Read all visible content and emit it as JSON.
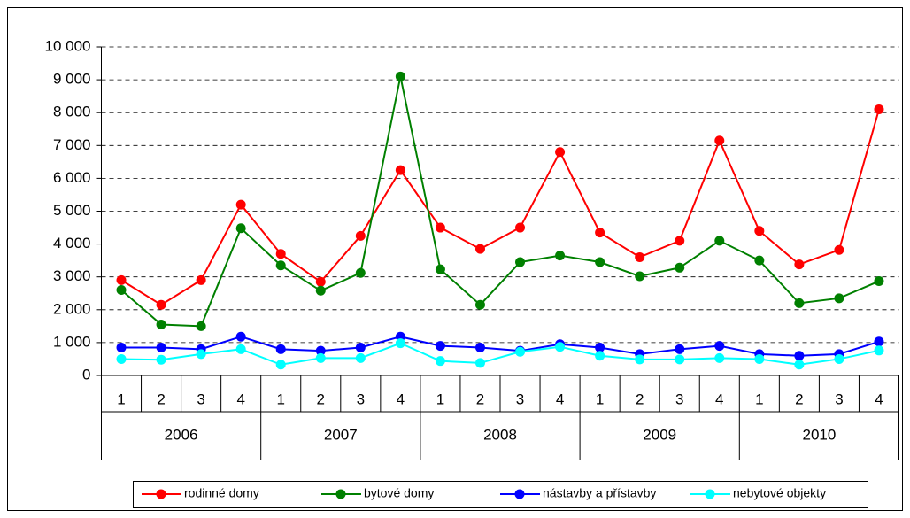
{
  "chart_data": {
    "type": "line",
    "categories": [
      "1",
      "2",
      "3",
      "4",
      "1",
      "2",
      "3",
      "4",
      "1",
      "2",
      "3",
      "4",
      "1",
      "2",
      "3",
      "4",
      "1",
      "2",
      "3",
      "4"
    ],
    "groups": [
      "2006",
      "2007",
      "2008",
      "2009",
      "2010"
    ],
    "series": [
      {
        "name": "rodinné domy",
        "color": "#ff0000",
        "values": [
          2900,
          2150,
          2900,
          5200,
          3700,
          2850,
          4250,
          6250,
          4500,
          3850,
          4500,
          6800,
          4350,
          3600,
          4100,
          7150,
          4400,
          3380,
          3820,
          8100
        ]
      },
      {
        "name": "bytové domy",
        "color": "#008000",
        "values": [
          2600,
          1550,
          1500,
          4480,
          3350,
          2580,
          3120,
          9100,
          3230,
          2150,
          3450,
          3650,
          3450,
          3020,
          3280,
          4100,
          3500,
          2200,
          2350,
          2870
        ]
      },
      {
        "name": "nástavby a přístavby",
        "color": "#0000ff",
        "values": [
          850,
          850,
          800,
          1180,
          800,
          750,
          850,
          1180,
          900,
          850,
          750,
          950,
          850,
          650,
          800,
          900,
          650,
          600,
          650,
          1030
        ]
      },
      {
        "name": "nebytové objekty",
        "color": "#00ffff",
        "values": [
          500,
          480,
          650,
          800,
          330,
          530,
          530,
          980,
          440,
          380,
          720,
          870,
          600,
          490,
          490,
          530,
          500,
          330,
          500,
          760
        ]
      }
    ],
    "ylim": [
      0,
      10000
    ],
    "yticks": [
      0,
      {
        "value": 1000,
        "label": "1 000"
      },
      {
        "value": 2000,
        "label": "2 000"
      },
      {
        "value": 3000,
        "label": "3 000"
      },
      {
        "value": 4000,
        "label": "4 000"
      },
      {
        "value": 5000,
        "label": "5 000"
      },
      {
        "value": 6000,
        "label": "6 000"
      },
      {
        "value": 7000,
        "label": "7 000"
      },
      {
        "value": 8000,
        "label": "8 000"
      },
      {
        "value": 9000,
        "label": "9 000"
      },
      {
        "value": 10000,
        "label": "10 000"
      }
    ],
    "grid": true,
    "legend": "bottom"
  }
}
